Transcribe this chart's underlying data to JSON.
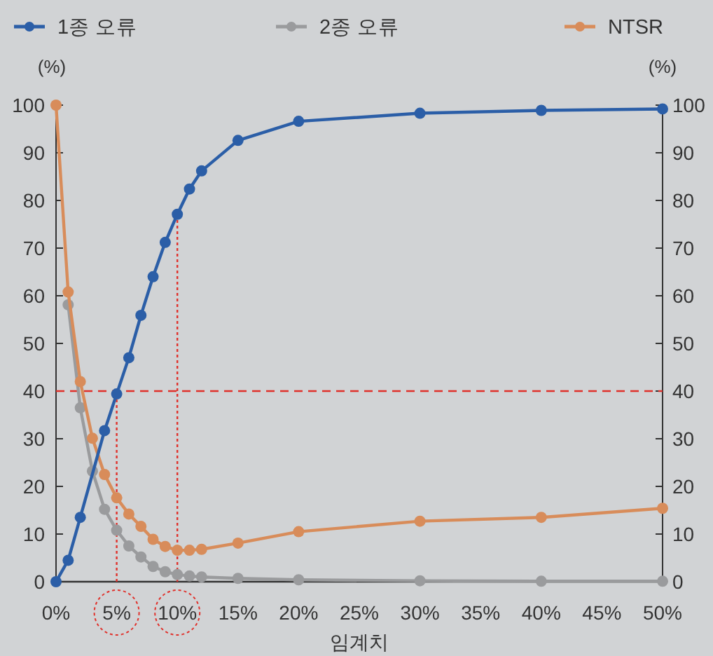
{
  "chart_data": {
    "type": "line",
    "xlabel": "임계치",
    "ylabel": "(%)",
    "y2label": "(%)",
    "x": [
      0,
      1,
      2,
      3,
      4,
      5,
      6,
      7,
      8,
      9,
      10,
      11,
      12,
      15,
      20,
      30,
      40,
      50
    ],
    "series": [
      {
        "name": "1종 오류",
        "color": "#2b5ea7",
        "x": [
          0,
          1,
          2,
          4,
          5,
          6,
          7,
          8,
          9,
          10,
          11,
          12,
          15,
          20,
          30,
          40,
          50
        ],
        "values": [
          0,
          4.5,
          13.5,
          31.7,
          39.4,
          47,
          55.9,
          64,
          71.2,
          77.1,
          82.4,
          86.2,
          92.6,
          96.6,
          98.3,
          98.9,
          99.2
        ]
      },
      {
        "name": "2종 오류",
        "color": "#9a9b9d",
        "values": [
          null,
          58.1,
          36.5,
          23.2,
          15.2,
          10.8,
          7.5,
          5.2,
          3.2,
          2.1,
          1.5,
          1.2,
          1,
          0.7,
          0.4,
          0.2,
          0.1,
          0.1
        ]
      },
      {
        "name": "NTSR",
        "color": "#d88c5a",
        "values": [
          100,
          60.8,
          42,
          30.1,
          22.5,
          17.6,
          14.2,
          11.6,
          8.9,
          7.4,
          6.6,
          6.6,
          6.8,
          8.1,
          10.5,
          12.7,
          13.5,
          15.4
        ]
      }
    ],
    "xlim": [
      0,
      50
    ],
    "xticks": [
      {
        "value": 0,
        "label": "0%"
      },
      {
        "value": 5,
        "label": "5%"
      },
      {
        "value": 10,
        "label": "10%"
      },
      {
        "value": 15,
        "label": "15%"
      },
      {
        "value": 20,
        "label": "20%"
      },
      {
        "value": 25,
        "label": "25%"
      },
      {
        "value": 30,
        "label": "30%"
      },
      {
        "value": 35,
        "label": "35%"
      },
      {
        "value": 40,
        "label": "40%"
      },
      {
        "value": 45,
        "label": "45%"
      },
      {
        "value": 50,
        "label": "50%"
      }
    ],
    "ylim": [
      0,
      100
    ],
    "yticks": [
      0,
      10,
      20,
      30,
      40,
      50,
      60,
      70,
      80,
      90,
      100
    ],
    "y2lim": [
      0,
      100
    ],
    "y2ticks": [
      0,
      10,
      20,
      30,
      40,
      50,
      60,
      70,
      80,
      90,
      100
    ],
    "ref_lines": [
      {
        "axis": "y",
        "value": 40,
        "color": "#e0312b",
        "line_style": "dashed"
      },
      {
        "axis": "x",
        "value": 5,
        "color": "#e0312b",
        "line_style": "dotted"
      },
      {
        "axis": "x",
        "value": 10,
        "color": "#e0312b",
        "line_style": "dotted"
      }
    ],
    "grid": false,
    "legend": "top",
    "marker": "circle",
    "line_style": "solid"
  }
}
